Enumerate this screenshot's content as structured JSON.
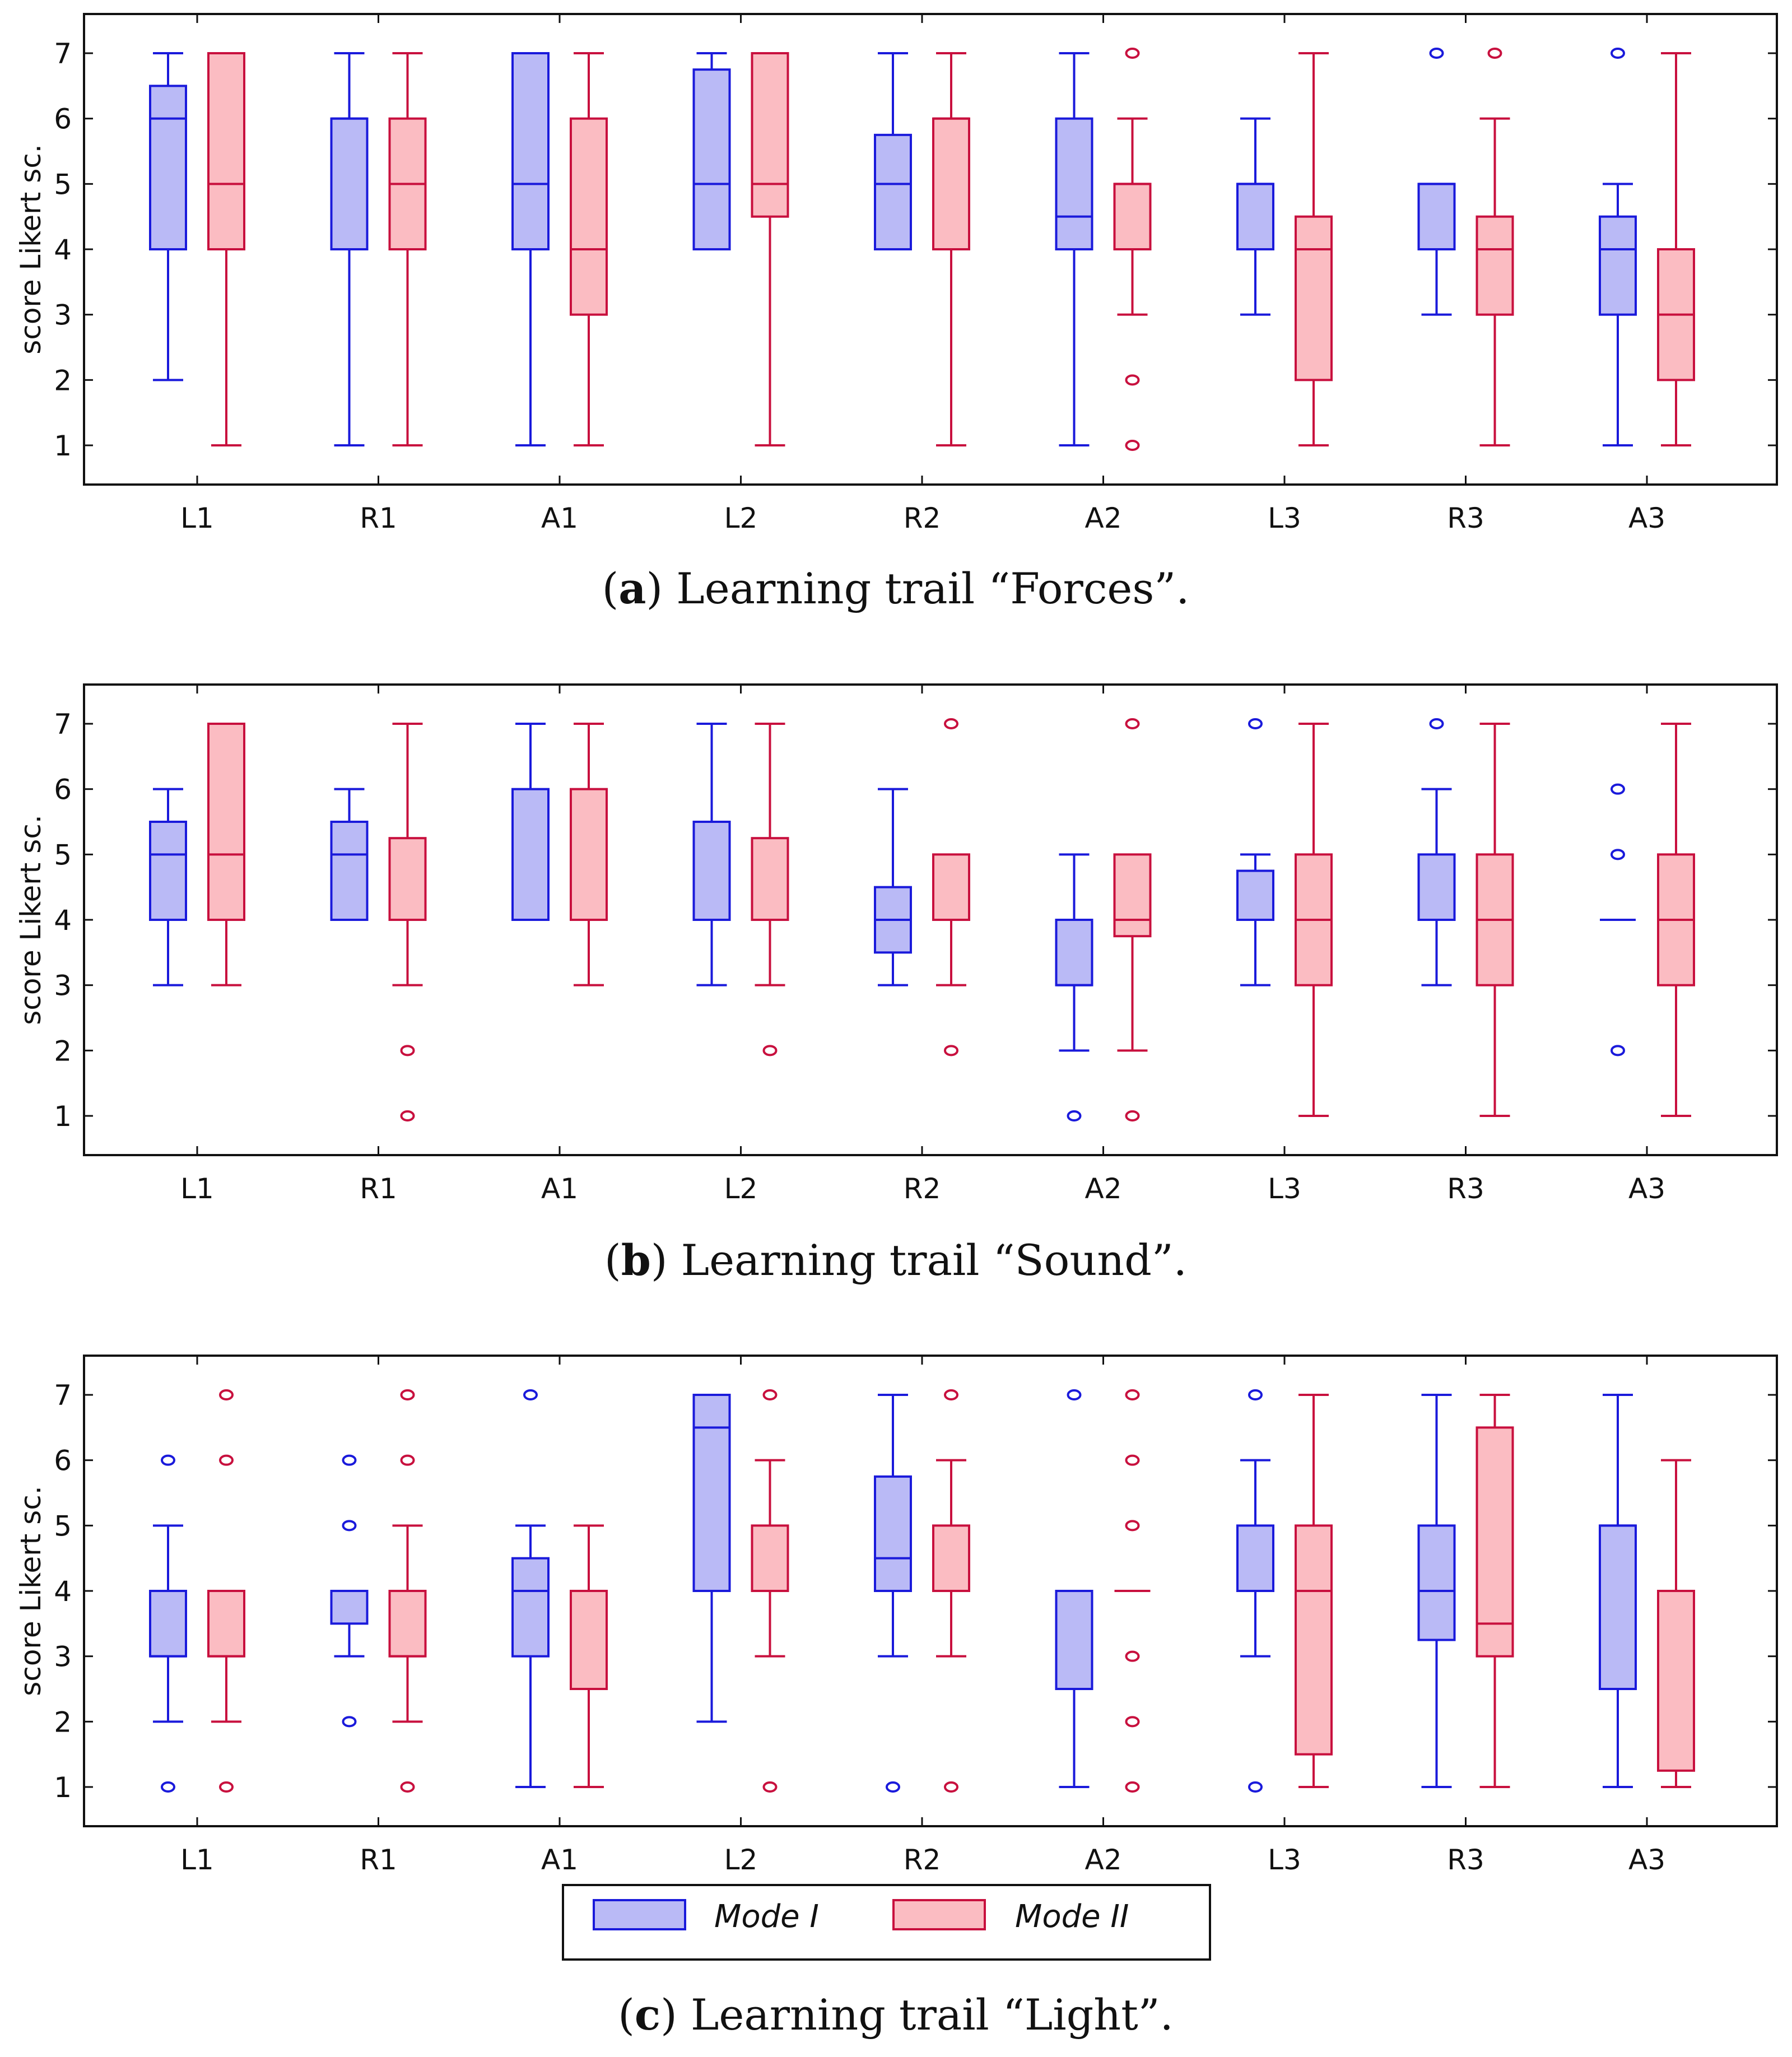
{
  "colors": {
    "mode1_stroke": "#1a1adb",
    "mode1_fill": "#babaf6",
    "mode2_stroke": "#c8103e",
    "mode2_fill": "#fbbcc2"
  },
  "legend": {
    "mode1": "Mode I",
    "mode2": "Mode II"
  },
  "chart_data": [
    {
      "type": "boxplot",
      "caption_label": "a",
      "caption_text": " Learning trail “Forces”.",
      "ylabel": "score Likert sc.",
      "ylim": [
        0.4,
        7.6
      ],
      "yticks": [
        "1",
        "2",
        "3",
        "4",
        "5",
        "6",
        "7"
      ],
      "categories": [
        "L1",
        "R1",
        "A1",
        "L2",
        "R2",
        "A2",
        "L3",
        "R3",
        "A3"
      ],
      "series": [
        {
          "name": "Mode I",
          "boxes": [
            {
              "q1": 4,
              "median": 6,
              "q3": 6.5,
              "low": 2,
              "high": 7,
              "outliers": []
            },
            {
              "q1": 4,
              "median": 6,
              "q3": 6,
              "low": 1,
              "high": 7,
              "outliers": []
            },
            {
              "q1": 4,
              "median": 5,
              "q3": 7,
              "low": 1,
              "high": 7,
              "outliers": []
            },
            {
              "q1": 4,
              "median": 5,
              "q3": 6.75,
              "low": 4,
              "high": 7,
              "outliers": []
            },
            {
              "q1": 4,
              "median": 5,
              "q3": 5.75,
              "low": 4,
              "high": 7,
              "outliers": []
            },
            {
              "q1": 4,
              "median": 4.5,
              "q3": 6,
              "low": 1,
              "high": 7,
              "outliers": []
            },
            {
              "q1": 4,
              "median": 5,
              "q3": 5,
              "low": 3,
              "high": 6,
              "outliers": []
            },
            {
              "q1": 4,
              "median": 5,
              "q3": 5,
              "low": 3,
              "high": 5,
              "outliers": [
                7
              ]
            },
            {
              "q1": 3,
              "median": 4,
              "q3": 4.5,
              "low": 1,
              "high": 5,
              "outliers": [
                7
              ]
            }
          ]
        },
        {
          "name": "Mode II",
          "boxes": [
            {
              "q1": 4,
              "median": 5,
              "q3": 7,
              "low": 1,
              "high": 7,
              "outliers": []
            },
            {
              "q1": 4,
              "median": 5,
              "q3": 6,
              "low": 1,
              "high": 7,
              "outliers": []
            },
            {
              "q1": 3,
              "median": 4,
              "q3": 6,
              "low": 1,
              "high": 7,
              "outliers": []
            },
            {
              "q1": 4.5,
              "median": 5,
              "q3": 7,
              "low": 1,
              "high": 7,
              "outliers": []
            },
            {
              "q1": 4,
              "median": 6,
              "q3": 6,
              "low": 1,
              "high": 7,
              "outliers": []
            },
            {
              "q1": 4,
              "median": 5,
              "q3": 5,
              "low": 3,
              "high": 6,
              "outliers": [
                7,
                2,
                1
              ]
            },
            {
              "q1": 2,
              "median": 4,
              "q3": 4.5,
              "low": 1,
              "high": 7,
              "outliers": []
            },
            {
              "q1": 3,
              "median": 4,
              "q3": 4.5,
              "low": 1,
              "high": 6,
              "outliers": [
                7
              ]
            },
            {
              "q1": 2,
              "median": 3,
              "q3": 4,
              "low": 1,
              "high": 7,
              "outliers": []
            }
          ]
        }
      ]
    },
    {
      "type": "boxplot",
      "caption_label": "b",
      "caption_text": " Learning trail “Sound”.",
      "ylabel": "score Likert sc.",
      "ylim": [
        0.4,
        7.6
      ],
      "yticks": [
        "1",
        "2",
        "3",
        "4",
        "5",
        "6",
        "7"
      ],
      "categories": [
        "L1",
        "R1",
        "A1",
        "L2",
        "R2",
        "A2",
        "L3",
        "R3",
        "A3"
      ],
      "series": [
        {
          "name": "Mode I",
          "boxes": [
            {
              "q1": 4,
              "median": 5,
              "q3": 5.5,
              "low": 3,
              "high": 6,
              "outliers": []
            },
            {
              "q1": 4,
              "median": 5,
              "q3": 5.5,
              "low": 4,
              "high": 6,
              "outliers": []
            },
            {
              "q1": 4,
              "median": 4,
              "q3": 6,
              "low": 4,
              "high": 7,
              "outliers": []
            },
            {
              "q1": 4,
              "median": 4,
              "q3": 5.5,
              "low": 3,
              "high": 7,
              "outliers": []
            },
            {
              "q1": 3.5,
              "median": 4,
              "q3": 4.5,
              "low": 3,
              "high": 6,
              "outliers": []
            },
            {
              "q1": 3,
              "median": 3,
              "q3": 4,
              "low": 2,
              "high": 5,
              "outliers": [
                1
              ]
            },
            {
              "q1": 4,
              "median": 4,
              "q3": 4.75,
              "low": 3,
              "high": 5,
              "outliers": [
                7
              ]
            },
            {
              "q1": 4,
              "median": 4,
              "q3": 5,
              "low": 3,
              "high": 6,
              "outliers": [
                7
              ]
            },
            {
              "q1": 4,
              "median": 4,
              "q3": 4,
              "low": 4,
              "high": 4,
              "outliers": [
                6,
                5,
                2
              ]
            }
          ]
        },
        {
          "name": "Mode II",
          "boxes": [
            {
              "q1": 4,
              "median": 5,
              "q3": 7,
              "low": 3,
              "high": 7,
              "outliers": []
            },
            {
              "q1": 4,
              "median": 4,
              "q3": 5.25,
              "low": 3,
              "high": 7,
              "outliers": [
                2,
                1
              ]
            },
            {
              "q1": 4,
              "median": 4,
              "q3": 6,
              "low": 3,
              "high": 7,
              "outliers": []
            },
            {
              "q1": 4,
              "median": 4,
              "q3": 5.25,
              "low": 3,
              "high": 7,
              "outliers": [
                2
              ]
            },
            {
              "q1": 4,
              "median": 4,
              "q3": 5,
              "low": 3,
              "high": 5,
              "outliers": [
                7,
                2
              ]
            },
            {
              "q1": 3.75,
              "median": 4,
              "q3": 5,
              "low": 2,
              "high": 5,
              "outliers": [
                7,
                1
              ]
            },
            {
              "q1": 3,
              "median": 4,
              "q3": 5,
              "low": 1,
              "high": 7,
              "outliers": []
            },
            {
              "q1": 3,
              "median": 4,
              "q3": 5,
              "low": 1,
              "high": 7,
              "outliers": []
            },
            {
              "q1": 3,
              "median": 4,
              "q3": 5,
              "low": 1,
              "high": 7,
              "outliers": []
            }
          ]
        }
      ]
    },
    {
      "type": "boxplot",
      "caption_label": "c",
      "caption_text": " Learning trail “Light”.",
      "ylabel": "score Likert sc.",
      "ylim": [
        0.4,
        7.6
      ],
      "yticks": [
        "1",
        "2",
        "3",
        "4",
        "5",
        "6",
        "7"
      ],
      "categories": [
        "L1",
        "R1",
        "A1",
        "L2",
        "R2",
        "A2",
        "L3",
        "R3",
        "A3"
      ],
      "series": [
        {
          "name": "Mode I",
          "boxes": [
            {
              "q1": 3,
              "median": 3,
              "q3": 4,
              "low": 2,
              "high": 5,
              "outliers": [
                6,
                1
              ]
            },
            {
              "q1": 3.5,
              "median": 4,
              "q3": 4,
              "low": 3,
              "high": 4,
              "outliers": [
                6,
                5,
                2
              ]
            },
            {
              "q1": 3,
              "median": 4,
              "q3": 4.5,
              "low": 1,
              "high": 5,
              "outliers": [
                7
              ]
            },
            {
              "q1": 4,
              "median": 6.5,
              "q3": 7,
              "low": 2,
              "high": 7,
              "outliers": []
            },
            {
              "q1": 4,
              "median": 4.5,
              "q3": 5.75,
              "low": 3,
              "high": 7,
              "outliers": [
                1
              ]
            },
            {
              "q1": 2.5,
              "median": 4,
              "q3": 4,
              "low": 1,
              "high": 4,
              "outliers": [
                7
              ]
            },
            {
              "q1": 4,
              "median": 4,
              "q3": 5,
              "low": 3,
              "high": 6,
              "outliers": [
                7,
                1
              ]
            },
            {
              "q1": 3.25,
              "median": 4,
              "q3": 5,
              "low": 1,
              "high": 7,
              "outliers": []
            },
            {
              "q1": 2.5,
              "median": 5,
              "q3": 5,
              "low": 1,
              "high": 7,
              "outliers": []
            }
          ]
        },
        {
          "name": "Mode II",
          "boxes": [
            {
              "q1": 3,
              "median": 3,
              "q3": 4,
              "low": 2,
              "high": 4,
              "outliers": [
                7,
                6,
                1
              ]
            },
            {
              "q1": 3,
              "median": 3,
              "q3": 4,
              "low": 2,
              "high": 5,
              "outliers": [
                7,
                6,
                1
              ]
            },
            {
              "q1": 2.5,
              "median": 4,
              "q3": 4,
              "low": 1,
              "high": 5,
              "outliers": []
            },
            {
              "q1": 4,
              "median": 4,
              "q3": 5,
              "low": 3,
              "high": 6,
              "outliers": [
                7,
                1
              ]
            },
            {
              "q1": 4,
              "median": 4,
              "q3": 5,
              "low": 3,
              "high": 6,
              "outliers": [
                7,
                1
              ]
            },
            {
              "q1": 4,
              "median": 4,
              "q3": 4,
              "low": 4,
              "high": 4,
              "outliers": [
                7,
                6,
                5,
                3,
                2,
                1
              ]
            },
            {
              "q1": 1.5,
              "median": 4,
              "q3": 5,
              "low": 1,
              "high": 7,
              "outliers": []
            },
            {
              "q1": 3,
              "median": 3.5,
              "q3": 6.5,
              "low": 1,
              "high": 7,
              "outliers": []
            },
            {
              "q1": 1.25,
              "median": 4,
              "q3": 4,
              "low": 1,
              "high": 6,
              "outliers": []
            }
          ]
        }
      ]
    }
  ]
}
